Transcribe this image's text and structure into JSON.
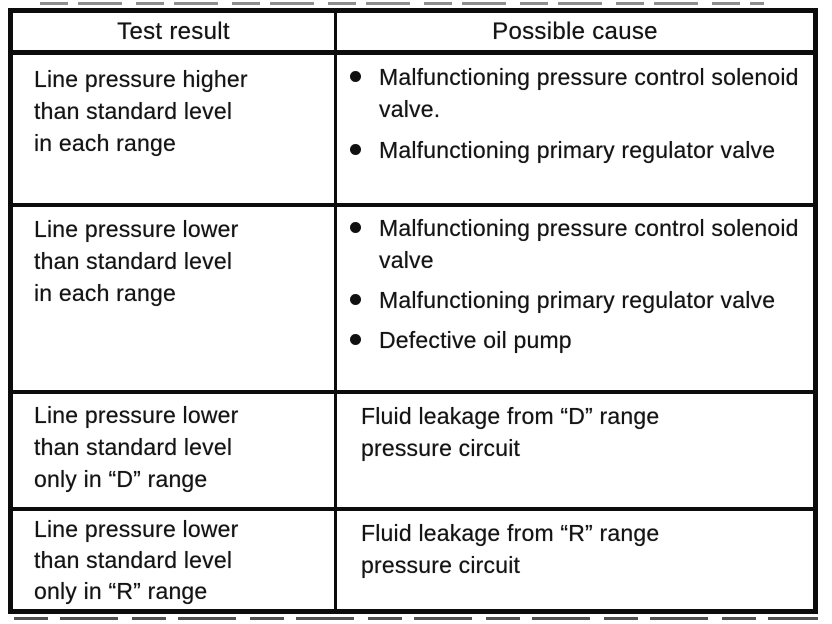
{
  "colors": {
    "ink": "#141414",
    "paper": "#ffffff",
    "border": "#0c0c0c"
  },
  "icons": {
    "bullet_icon": "filled-circle"
  },
  "table": {
    "header": {
      "test_result": "Test result",
      "possible_cause": "Possible cause"
    },
    "rows": [
      {
        "test_result_lines": [
          "Line pressure higher",
          "than standard level",
          "in each range"
        ],
        "causes": [
          "Malfunctioning pressure control solenoid valve.",
          "Malfunctioning primary regulator valve"
        ]
      },
      {
        "test_result_lines": [
          "Line pressure lower",
          "than standard level",
          "in each range"
        ],
        "causes": [
          "Malfunctioning pressure control solenoid valve",
          "Malfunctioning primary regulator valve",
          "Defective oil pump"
        ]
      },
      {
        "test_result_lines": [
          "Line pressure lower",
          "than standard level",
          "only in “D” range"
        ],
        "cause_text": "Fluid leakage from “D” range pressure circuit"
      },
      {
        "test_result_lines": [
          "Line pressure lower",
          "than standard level",
          "only in “R” range"
        ],
        "cause_text": "Fluid leakage from “R” range pressure circuit"
      }
    ]
  }
}
